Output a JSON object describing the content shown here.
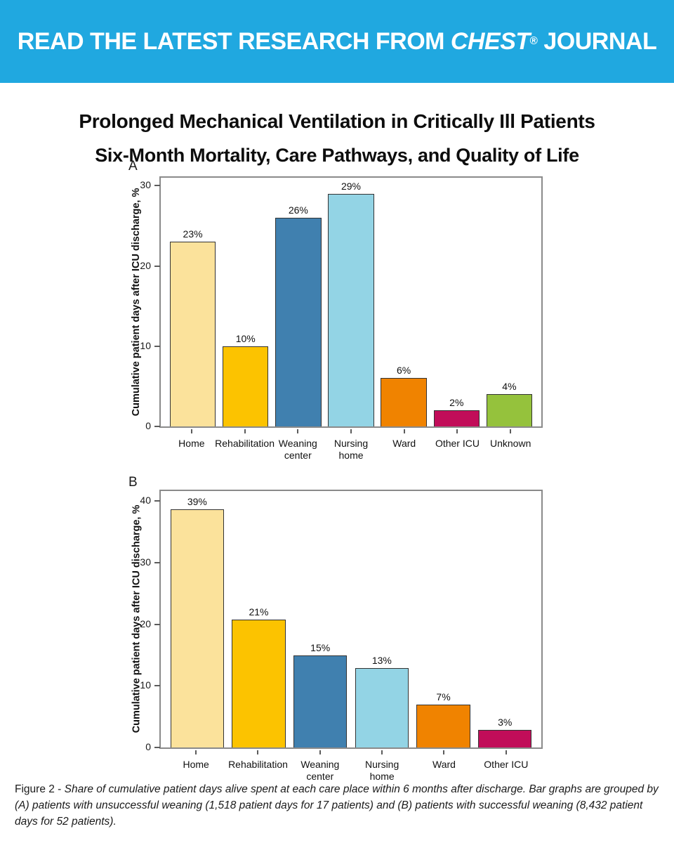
{
  "banner": {
    "prefix": "READ THE LATEST RESEARCH FROM ",
    "journal": "CHEST",
    "reg": "®",
    "suffix": " JOURNAL",
    "bg_color": "#20A8E0"
  },
  "title": {
    "line1": "Prolonged Mechanical Ventilation in Critically Ill Patients",
    "line2": "Six-Month Mortality, Care Pathways, and Quality of Life"
  },
  "chart_data": [
    {
      "type": "bar",
      "panel_label": "A",
      "ylabel": "Cumulative patient days after ICU discharge, %",
      "xlabel": "",
      "categories": [
        "Home",
        "Rehabilitation",
        "Weaning\ncenter",
        "Nursing\nhome",
        "Ward",
        "Other ICU",
        "Unknown"
      ],
      "values": [
        23,
        10,
        26,
        29,
        6,
        2,
        4
      ],
      "value_labels": [
        "23%",
        "10%",
        "26%",
        "29%",
        "6%",
        "2%",
        "4%"
      ],
      "colors": [
        "#FBE29B",
        "#FCC300",
        "#4080AF",
        "#93D4E5",
        "#F08300",
        "#C10D59",
        "#95C23C"
      ],
      "yticks": [
        0,
        10,
        20,
        30
      ],
      "ylim": [
        0,
        31
      ],
      "grid": false,
      "legend": null
    },
    {
      "type": "bar",
      "panel_label": "B",
      "ylabel": "Cumulative patient days after ICU discharge, %",
      "xlabel": "",
      "categories": [
        "Home",
        "Rehabilitation",
        "Weaning\ncenter",
        "Nursing\nhome",
        "Ward",
        "Other ICU"
      ],
      "values": [
        38.6,
        20.8,
        14.9,
        12.9,
        6.9,
        2.9
      ],
      "value_labels": [
        "39%",
        "21%",
        "15%",
        "13%",
        "7%",
        "3%"
      ],
      "colors": [
        "#FBE29B",
        "#FCC300",
        "#4080AF",
        "#93D4E5",
        "#F08300",
        "#C10D59"
      ],
      "yticks": [
        0,
        10,
        20,
        30,
        40
      ],
      "ylim": [
        0,
        41.6
      ],
      "grid": false,
      "legend": null
    }
  ],
  "caption": {
    "prefix": "Figure 2 - ",
    "body": "Share of cumulative patient days alive spent at each care place within 6 months after discharge. Bar graphs are grouped by (A) patients with unsuccessful weaning (1,518 patient days for 17 patients) and (B) patients with successful weaning (8,432 patient days for 52 patients)."
  }
}
